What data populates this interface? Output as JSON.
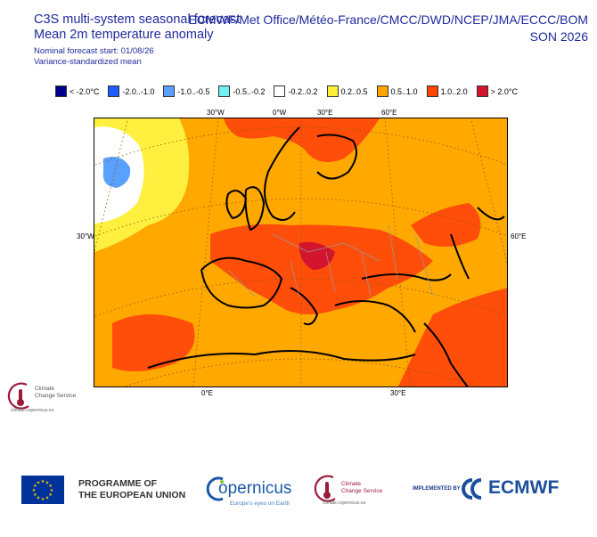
{
  "header": {
    "title_line1": "C3S multi-system seasonal forecast",
    "title_line2": "Mean 2m temperature anomaly",
    "subtitle_line1": "Nominal forecast start: 01/08/26",
    "subtitle_line2": "Variance-standardized mean",
    "providers": "ECMWF/Met Office/Météo-France/CMCC/DWD/NCEP/JMA/ECCC/BOM",
    "season": "SON 2026"
  },
  "legend": {
    "items": [
      {
        "label": "< -2.0°C",
        "color": "#00008b"
      },
      {
        "label": "-2.0..-1.0",
        "color": "#1e5cff"
      },
      {
        "label": "-1.0..-0.5",
        "color": "#5aa0ff"
      },
      {
        "label": "-0.5..-0.2",
        "color": "#70f0f0"
      },
      {
        "label": "-0.2..0.2",
        "color": "#ffffff"
      },
      {
        "label": "0.2..0.5",
        "color": "#fff03c"
      },
      {
        "label": "0.5..1.0",
        "color": "#ffa500"
      },
      {
        "label": "1.0..2.0",
        "color": "#ff4500"
      },
      {
        "label": "> 2.0°C",
        "color": "#d2142d"
      }
    ]
  },
  "map": {
    "top_labels": [
      "30°W",
      "0°W",
      "30°E",
      "60°E"
    ],
    "bottom_labels": [
      "0°E",
      "30°E"
    ],
    "left_label": "30°W",
    "right_label": "60°E"
  },
  "inline_logo": {
    "name_line1": "Climate",
    "name_line2": "Change Service",
    "url": "climate.copernicus.eu"
  },
  "footer": {
    "programme_line1": "PROGRAMME OF",
    "programme_line2": "THE EUROPEAN UNION",
    "copernicus": "opernicus",
    "copernicus_tagline": "Europe's eyes on Earth",
    "c3s_line1": "Climate",
    "c3s_line2": "Change Service",
    "c3s_url": "climate.copernicus.eu",
    "implemented_by": "IMPLEMENTED BY",
    "ecmwf": "ECMWF"
  }
}
